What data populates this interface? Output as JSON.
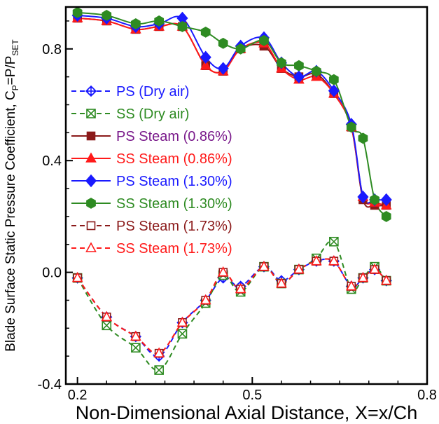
{
  "chart_data": {
    "type": "line",
    "xlabel": "Non-Dimensional Axial Distance, X=x/Ch",
    "ylabel": "Blade Surface Static Pressure Coefficient, C",
    "ylabel_sub1": "P",
    "ylabel_mid": "=P/P",
    "ylabel_sub2": "SET",
    "xlim": [
      0.18,
      0.8
    ],
    "ylim": [
      -0.4,
      0.95
    ],
    "xticks": [
      0.2,
      0.5,
      0.8
    ],
    "xtick_labels": [
      "0.2",
      "0.5",
      "0.8"
    ],
    "yticks": [
      -0.4,
      0.0,
      0.4,
      0.8
    ],
    "ytick_labels": [
      "-0.4",
      "0.0",
      "0.4",
      "0.8"
    ],
    "legend_position": "left",
    "series": [
      {
        "name": "PS (Dry air)",
        "color": "#1a1aff",
        "dash": true,
        "marker": "circle-cross",
        "filled": false,
        "x": [
          0.2,
          0.25,
          0.3,
          0.34,
          0.38,
          0.42,
          0.45,
          0.48,
          0.52,
          0.55,
          0.58,
          0.61,
          0.64,
          0.67,
          0.69,
          0.71,
          0.73
        ],
        "y": [
          -0.02,
          -0.16,
          -0.23,
          -0.3,
          -0.18,
          -0.1,
          -0.02,
          -0.05,
          0.02,
          -0.03,
          0.01,
          0.04,
          0.04,
          -0.05,
          -0.02,
          0.01,
          -0.03
        ]
      },
      {
        "name": "SS (Dry air)",
        "color": "#2e8b22",
        "dash": true,
        "marker": "square-x",
        "filled": false,
        "x": [
          0.2,
          0.25,
          0.3,
          0.34,
          0.38,
          0.42,
          0.45,
          0.48,
          0.52,
          0.55,
          0.58,
          0.61,
          0.64,
          0.67,
          0.69,
          0.71,
          0.73
        ],
        "y": [
          -0.02,
          -0.19,
          -0.27,
          -0.35,
          -0.22,
          -0.11,
          -0.01,
          -0.07,
          0.02,
          -0.04,
          0.01,
          0.05,
          0.11,
          -0.06,
          -0.02,
          0.02,
          -0.03
        ]
      },
      {
        "name": "PS Steam (0.86%)",
        "color": "#8b1a1a",
        "dash": false,
        "marker": "square",
        "filled": true,
        "x": [
          0.2,
          0.25,
          0.3,
          0.34,
          0.38,
          0.42,
          0.45,
          0.48,
          0.52,
          0.55,
          0.58,
          0.61,
          0.64,
          0.67,
          0.69,
          0.71,
          0.73
        ],
        "y": [
          0.91,
          0.9,
          0.87,
          0.88,
          0.88,
          0.74,
          0.72,
          0.8,
          0.81,
          0.73,
          0.7,
          0.71,
          0.64,
          0.52,
          0.26,
          0.24,
          0.24
        ]
      },
      {
        "name": "SS Steam (0.86%)",
        "color": "#ff1a1a",
        "dash": false,
        "marker": "triangle",
        "filled": true,
        "x": [
          0.2,
          0.25,
          0.3,
          0.34,
          0.38,
          0.42,
          0.45,
          0.48,
          0.52,
          0.55,
          0.58,
          0.61,
          0.64,
          0.67,
          0.69,
          0.71,
          0.73
        ],
        "y": [
          0.91,
          0.9,
          0.87,
          0.88,
          0.88,
          0.74,
          0.72,
          0.8,
          0.82,
          0.73,
          0.69,
          0.7,
          0.64,
          0.52,
          0.27,
          0.25,
          0.24
        ]
      },
      {
        "name": "PS Steam (1.30%)",
        "color": "#1a1aff",
        "dash": false,
        "marker": "diamond",
        "filled": true,
        "x": [
          0.2,
          0.25,
          0.3,
          0.34,
          0.38,
          0.42,
          0.45,
          0.48,
          0.52,
          0.55,
          0.58,
          0.61,
          0.64,
          0.67,
          0.69,
          0.71,
          0.73
        ],
        "y": [
          0.92,
          0.91,
          0.88,
          0.89,
          0.91,
          0.77,
          0.73,
          0.81,
          0.84,
          0.75,
          0.7,
          0.72,
          0.65,
          0.53,
          0.27,
          0.26,
          0.26
        ]
      },
      {
        "name": "SS Steam (1.30%)",
        "color": "#2e8b22",
        "dash": false,
        "marker": "hexagon",
        "filled": true,
        "x": [
          0.2,
          0.25,
          0.3,
          0.34,
          0.38,
          0.42,
          0.45,
          0.48,
          0.52,
          0.55,
          0.58,
          0.61,
          0.64,
          0.67,
          0.69,
          0.71,
          0.73
        ],
        "y": [
          0.93,
          0.92,
          0.89,
          0.9,
          0.88,
          0.86,
          0.82,
          0.8,
          0.83,
          0.75,
          0.74,
          0.72,
          0.69,
          0.52,
          0.48,
          0.26,
          0.2
        ]
      },
      {
        "name": "PS Steam (1.73%)",
        "color": "#8b1a1a",
        "dash": true,
        "marker": "square",
        "filled": false,
        "x": [
          0.2,
          0.25,
          0.3,
          0.34,
          0.38,
          0.42,
          0.45,
          0.48,
          0.52,
          0.55,
          0.58,
          0.61,
          0.64,
          0.67,
          0.69,
          0.71,
          0.73
        ],
        "y": [
          -0.02,
          -0.16,
          -0.23,
          -0.29,
          -0.18,
          -0.1,
          0.0,
          -0.06,
          0.02,
          -0.04,
          0.01,
          0.04,
          0.04,
          -0.05,
          -0.02,
          0.01,
          -0.03
        ]
      },
      {
        "name": "SS Steam (1.73%)",
        "color": "#ff1a1a",
        "dash": true,
        "marker": "triangle",
        "filled": false,
        "x": [
          0.2,
          0.25,
          0.3,
          0.34,
          0.38,
          0.42,
          0.45,
          0.48,
          0.52,
          0.55,
          0.58,
          0.61,
          0.64,
          0.67,
          0.69,
          0.71,
          0.73
        ],
        "y": [
          -0.02,
          -0.16,
          -0.23,
          -0.29,
          -0.18,
          -0.1,
          0.0,
          -0.06,
          0.02,
          -0.04,
          0.01,
          0.04,
          0.04,
          -0.05,
          -0.02,
          0.01,
          -0.03
        ]
      }
    ],
    "legend_text_colors": [
      "#1a1aff",
      "#2e8b22",
      "#7a1a8b",
      "#ff1a1a",
      "#1a1aff",
      "#2e8b22",
      "#8b1a1a",
      "#ff1a1a"
    ]
  }
}
